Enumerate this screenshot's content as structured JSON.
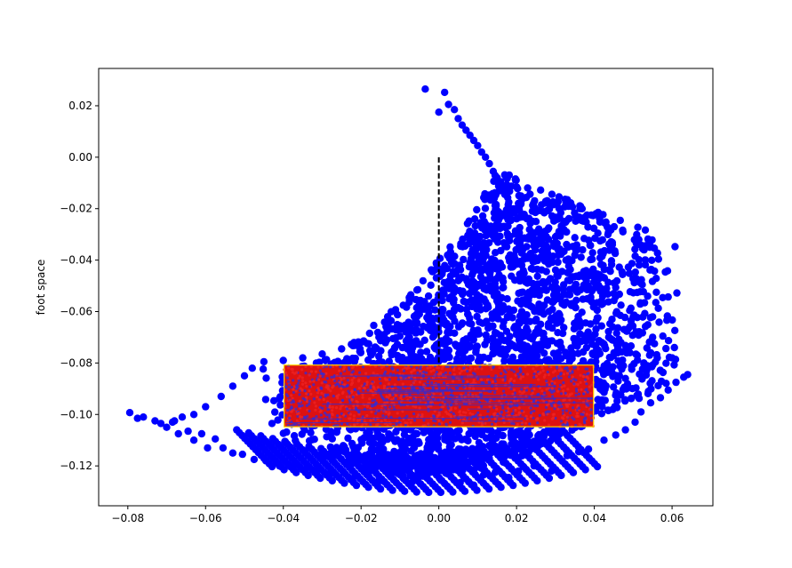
{
  "chart_data": {
    "type": "scatter",
    "title": "",
    "xlabel": "",
    "ylabel": "foot space",
    "xlim": [
      -0.0875,
      0.0705
    ],
    "ylim": [
      -0.1355,
      0.0345
    ],
    "grid": false,
    "xticks": [
      {
        "value": -0.08,
        "label": "−0.08"
      },
      {
        "value": -0.06,
        "label": "−0.06"
      },
      {
        "value": -0.04,
        "label": "−0.04"
      },
      {
        "value": -0.02,
        "label": "−0.02"
      },
      {
        "value": 0.0,
        "label": "0.00"
      },
      {
        "value": 0.02,
        "label": "0.02"
      },
      {
        "value": 0.04,
        "label": "0.04"
      },
      {
        "value": 0.06,
        "label": "0.06"
      }
    ],
    "yticks": [
      {
        "value": 0.02,
        "label": "0.02"
      },
      {
        "value": 0.0,
        "label": "0.00"
      },
      {
        "value": -0.02,
        "label": "−0.02"
      },
      {
        "value": -0.04,
        "label": "−0.04"
      },
      {
        "value": -0.06,
        "label": "−0.06"
      },
      {
        "value": -0.08,
        "label": "−0.08"
      },
      {
        "value": -0.1,
        "label": "−0.10"
      },
      {
        "value": -0.12,
        "label": "−0.12"
      }
    ],
    "series": [
      {
        "marker_color": "#0000ff",
        "values": [
          [
            -0.0795,
            -0.0993
          ],
          [
            -0.0775,
            -0.1015
          ],
          [
            -0.076,
            -0.101
          ],
          [
            -0.073,
            -0.1025
          ],
          [
            -0.0715,
            -0.1035
          ],
          [
            -0.07,
            -0.105
          ],
          [
            -0.0685,
            -0.103
          ],
          [
            -0.067,
            -0.1075
          ],
          [
            -0.066,
            -0.101
          ],
          [
            -0.0645,
            -0.1065
          ],
          [
            -0.063,
            -0.11
          ],
          [
            -0.061,
            -0.1075
          ],
          [
            -0.0595,
            -0.113
          ],
          [
            -0.0575,
            -0.1095
          ],
          [
            -0.0555,
            -0.113
          ],
          [
            -0.053,
            -0.115
          ],
          [
            -0.0505,
            -0.1155
          ],
          [
            -0.0475,
            -0.1175
          ],
          [
            -0.0445,
            -0.118
          ],
          [
            -0.041,
            -0.12
          ],
          [
            -0.038,
            -0.12
          ],
          [
            -0.0345,
            -0.1215
          ],
          [
            -0.031,
            -0.121
          ],
          [
            -0.028,
            -0.123
          ],
          [
            -0.0245,
            -0.1225
          ],
          [
            -0.0215,
            -0.124
          ],
          [
            -0.018,
            -0.1225
          ],
          [
            -0.0155,
            -0.126
          ],
          [
            -0.0125,
            -0.124
          ],
          [
            -0.009,
            -0.125
          ],
          [
            -0.007,
            -0.1265
          ],
          [
            -0.004,
            -0.124
          ],
          [
            0.0005,
            -0.1255
          ],
          [
            0.0025,
            -0.123
          ],
          [
            0.0055,
            -0.1265
          ],
          [
            0.009,
            -0.1275
          ],
          [
            0.0115,
            -0.1235
          ],
          [
            0.0145,
            -0.1225
          ],
          [
            0.018,
            -0.1245
          ],
          [
            0.0205,
            -0.122
          ],
          [
            0.0245,
            -0.12
          ],
          [
            0.029,
            -0.122
          ],
          [
            0.033,
            -0.116
          ],
          [
            0.036,
            -0.1145
          ],
          [
            0.0385,
            -0.1135
          ],
          [
            0.0425,
            -0.11
          ],
          [
            0.0455,
            -0.108
          ],
          [
            0.048,
            -0.106
          ],
          [
            0.0505,
            -0.103
          ],
          [
            0.052,
            -0.099
          ],
          [
            0.0545,
            -0.0955
          ],
          [
            0.057,
            -0.0935
          ],
          [
            0.059,
            -0.0905
          ],
          [
            0.061,
            -0.0875
          ],
          [
            0.063,
            -0.0855
          ],
          [
            0.064,
            -0.0845
          ],
          [
            -0.0035,
            0.0265
          ],
          [
            0.0015,
            0.0252
          ],
          [
            0.0,
            0.0175
          ],
          [
            0.0025,
            0.0205
          ],
          [
            0.004,
            0.0185
          ],
          [
            0.005,
            0.015
          ],
          [
            0.006,
            0.0125
          ],
          [
            0.007,
            0.0105
          ],
          [
            0.008,
            0.0085
          ],
          [
            0.009,
            0.0065
          ],
          [
            0.01,
            0.0045
          ],
          [
            0.011,
            0.002
          ],
          [
            0.012,
            0.0
          ],
          [
            0.013,
            -0.0025
          ],
          [
            0.014,
            -0.0055
          ],
          [
            0.015,
            -0.0085
          ],
          [
            0.016,
            -0.0115
          ],
          [
            0.017,
            -0.0145
          ],
          [
            0.018,
            -0.0175
          ],
          [
            0.0195,
            -0.0215
          ],
          [
            -0.045,
            -0.0795
          ],
          [
            -0.04,
            -0.079
          ],
          [
            -0.035,
            -0.078
          ],
          [
            -0.03,
            -0.0765
          ],
          [
            -0.025,
            -0.0745
          ],
          [
            -0.02,
            -0.072
          ],
          [
            -0.015,
            -0.069
          ],
          [
            -0.01,
            -0.0655
          ],
          [
            -0.005,
            -0.061
          ],
          [
            0.0,
            -0.0555
          ],
          [
            0.005,
            -0.048
          ],
          [
            0.008,
            -0.041
          ],
          [
            0.01,
            -0.034
          ],
          [
            0.012,
            -0.026
          ],
          [
            0.014,
            -0.016
          ],
          [
            0.015,
            -0.008
          ],
          [
            0.02,
            -0.02
          ],
          [
            0.025,
            -0.025
          ],
          [
            0.03,
            -0.031
          ],
          [
            0.035,
            -0.038
          ],
          [
            0.04,
            -0.045
          ],
          [
            0.045,
            -0.053
          ],
          [
            0.05,
            -0.062
          ],
          [
            0.055,
            -0.07
          ],
          [
            0.06,
            -0.078
          ],
          [
            -0.048,
            -0.082
          ],
          [
            -0.05,
            -0.085
          ],
          [
            -0.053,
            -0.089
          ],
          [
            -0.056,
            -0.093
          ],
          [
            -0.06,
            -0.097
          ],
          [
            -0.063,
            -0.1
          ],
          [
            -0.068,
            -0.1025
          ]
        ]
      },
      {
        "marker_color": "#dd1111",
        "values": []
      }
    ],
    "annotations": [
      {
        "type": "vline",
        "x": 0.0,
        "y_from": -0.081,
        "y_to": 0.0,
        "style": "dashed",
        "color": "#000000"
      },
      {
        "type": "rect",
        "x0": -0.0398,
        "x1": 0.0398,
        "y0": -0.1048,
        "y1": -0.0808,
        "fill": "#dd1111",
        "edge": "#ffd700"
      }
    ]
  }
}
